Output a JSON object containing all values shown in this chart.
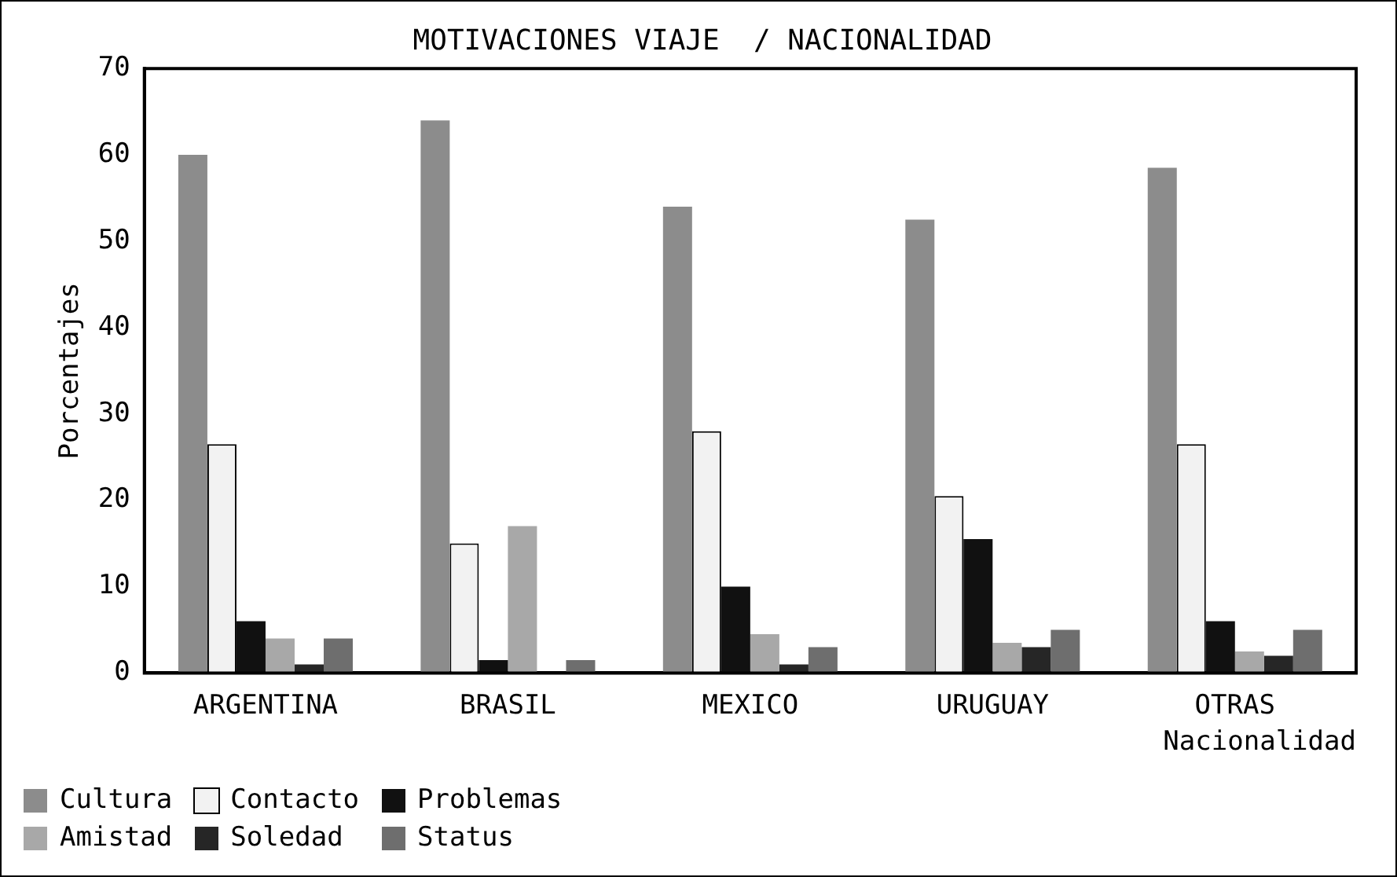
{
  "chart_data": {
    "type": "bar",
    "title": "MOTIVACIONES VIAJE  / NACIONALIDAD",
    "xlabel": "Nacionalidad",
    "ylabel": "Porcentajes",
    "categories": [
      "ARGENTINA",
      "BRASIL",
      "MEXICO",
      "URUGUAY",
      "OTRAS"
    ],
    "series": [
      {
        "name": "Cultura",
        "color": "#8c8c8c",
        "values": [
          60,
          64,
          54,
          52.5,
          58.5
        ]
      },
      {
        "name": "Contacto",
        "color": "#f2f2f2",
        "values": [
          26.5,
          15,
          28,
          20.5,
          26.5
        ]
      },
      {
        "name": "Problemas",
        "color": "#111111",
        "values": [
          6,
          1.5,
          10,
          15.5,
          6
        ]
      },
      {
        "name": "Amistad",
        "color": "#a8a8a8",
        "values": [
          4,
          17,
          4.5,
          3.5,
          2.5
        ]
      },
      {
        "name": "Soledad",
        "color": "#262626",
        "values": [
          1,
          null,
          1,
          3,
          2
        ]
      },
      {
        "name": "Status",
        "color": "#6e6e6e",
        "values": [
          4,
          1.5,
          3,
          5,
          5
        ]
      }
    ],
    "ylim": [
      0,
      70
    ],
    "yticks": [
      0,
      10,
      20,
      30,
      40,
      50,
      60,
      70
    ],
    "grid": false,
    "legend": "bottom left"
  }
}
